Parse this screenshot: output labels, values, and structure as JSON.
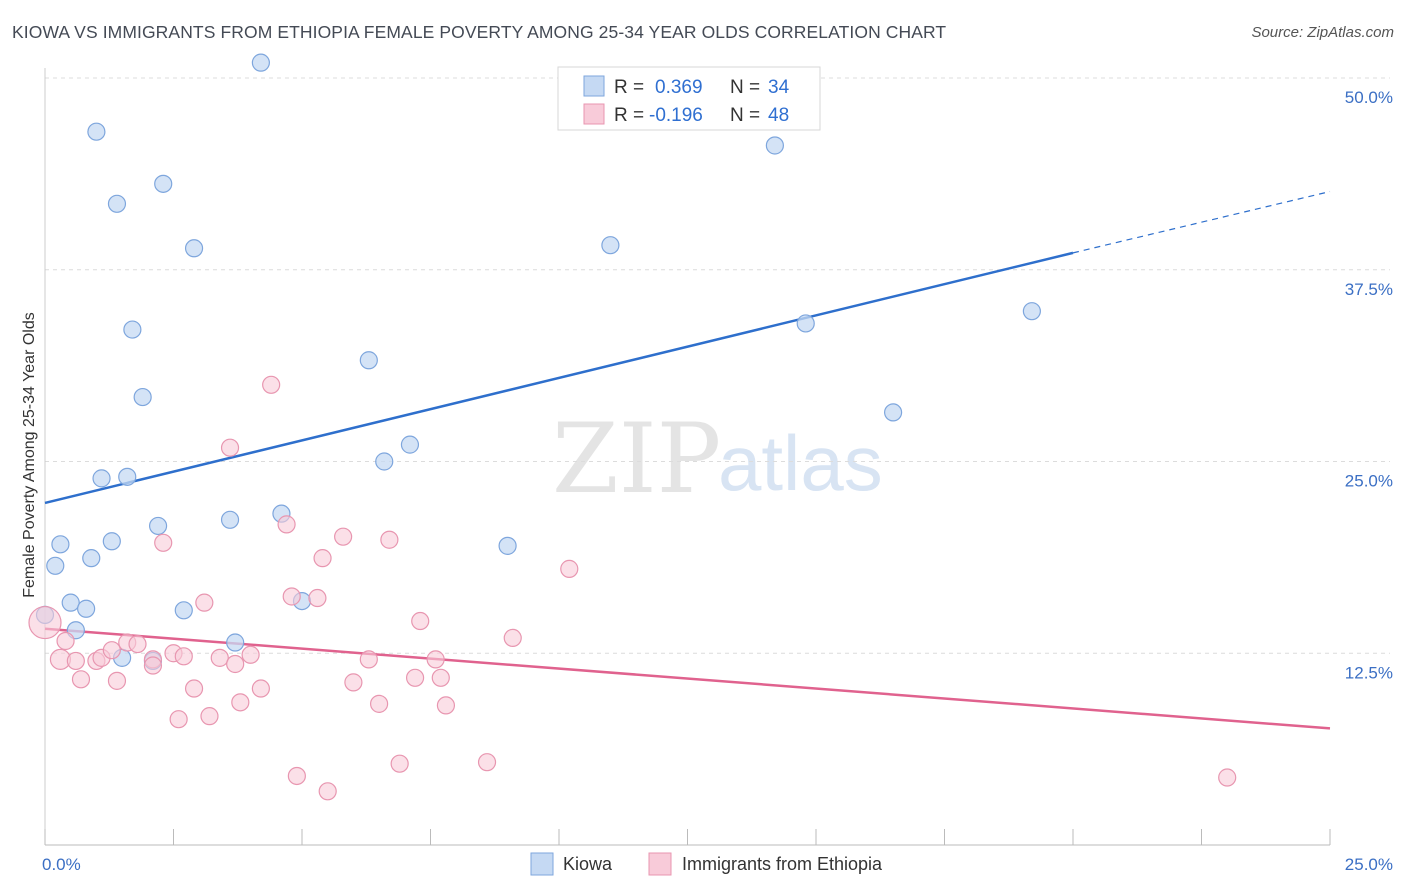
{
  "header": {
    "title": "KIOWA VS IMMIGRANTS FROM ETHIOPIA FEMALE POVERTY AMONG 25-34 YEAR OLDS CORRELATION CHART",
    "source": "Source: ZipAtlas.com"
  },
  "watermark": {
    "zip": "ZIP",
    "atlas": "atlas"
  },
  "chart_data": {
    "type": "scatter",
    "ylabel": "Female Poverty Among 25-34 Year Olds",
    "xlim": [
      0,
      25
    ],
    "ylim": [
      0,
      50
    ],
    "x_tick_labels": [
      {
        "value": 0,
        "label": "0.0%"
      },
      {
        "value": 25,
        "label": "25.0%"
      }
    ],
    "y_tick_labels": [
      {
        "value": 12.5,
        "label": "12.5%"
      },
      {
        "value": 25,
        "label": "25.0%"
      },
      {
        "value": 37.5,
        "label": "37.5%"
      },
      {
        "value": 50,
        "label": "50.0%"
      }
    ],
    "grid": true,
    "legend": {
      "position": "top-center",
      "entries": [
        {
          "r_label": "R =",
          "r_value": "0.369",
          "n_label": "N =",
          "n_value": "34"
        },
        {
          "r_label": "R =",
          "r_value": "-0.196",
          "n_label": "N =",
          "n_value": "48"
        }
      ]
    },
    "colors": {
      "kiowa_fill": "#c5d9f3",
      "kiowa_stroke": "#7ea6dd",
      "kiowa_line": "#2e6fcc",
      "ethiopia_fill": "#f8cbd9",
      "ethiopia_stroke": "#e896b0",
      "ethiopia_line": "#e0628e"
    },
    "series": [
      {
        "name": "Kiowa",
        "points": [
          [
            4.2,
            51.0
          ],
          [
            1.0,
            46.5
          ],
          [
            14.2,
            45.6
          ],
          [
            2.3,
            43.1
          ],
          [
            1.4,
            41.8
          ],
          [
            2.9,
            38.9
          ],
          [
            11.0,
            39.1
          ],
          [
            19.2,
            34.8
          ],
          [
            1.7,
            33.6
          ],
          [
            14.8,
            34.0
          ],
          [
            6.3,
            31.6
          ],
          [
            1.9,
            29.2
          ],
          [
            16.5,
            28.2
          ],
          [
            7.1,
            26.1
          ],
          [
            6.6,
            25.0
          ],
          [
            1.1,
            23.9
          ],
          [
            1.6,
            24.0
          ],
          [
            2.2,
            20.8
          ],
          [
            3.6,
            21.2
          ],
          [
            4.6,
            21.6
          ],
          [
            0.3,
            19.6
          ],
          [
            1.3,
            19.8
          ],
          [
            9.0,
            19.5
          ],
          [
            0.2,
            18.2
          ],
          [
            0.9,
            18.7
          ],
          [
            0.5,
            15.8
          ],
          [
            0.8,
            15.4
          ],
          [
            2.7,
            15.3
          ],
          [
            5.0,
            15.9
          ],
          [
            0.0,
            15.0
          ],
          [
            0.6,
            14.0
          ],
          [
            3.7,
            13.2
          ],
          [
            2.1,
            12.0
          ],
          [
            1.5,
            12.2
          ]
        ],
        "trend": {
          "x": [
            0,
            20
          ],
          "y": [
            22.3,
            38.6
          ],
          "dashed_extension": {
            "x": [
              20,
              25
            ],
            "y": [
              38.6,
              42.6
            ]
          }
        }
      },
      {
        "name": "Immigrants from Ethiopia",
        "points": [
          [
            0.0,
            14.5
          ],
          [
            0.3,
            12.1
          ],
          [
            0.6,
            12.0
          ],
          [
            0.4,
            13.3
          ],
          [
            0.7,
            10.8
          ],
          [
            1.0,
            12.0
          ],
          [
            1.1,
            12.2
          ],
          [
            1.3,
            12.7
          ],
          [
            1.4,
            10.7
          ],
          [
            1.6,
            13.2
          ],
          [
            1.8,
            13.1
          ],
          [
            2.1,
            12.1
          ],
          [
            2.1,
            11.7
          ],
          [
            2.3,
            19.7
          ],
          [
            2.5,
            12.5
          ],
          [
            2.6,
            8.2
          ],
          [
            2.7,
            12.3
          ],
          [
            2.9,
            10.2
          ],
          [
            3.1,
            15.8
          ],
          [
            3.2,
            8.4
          ],
          [
            3.4,
            12.2
          ],
          [
            3.6,
            25.9
          ],
          [
            3.7,
            11.8
          ],
          [
            3.8,
            9.3
          ],
          [
            4.0,
            12.4
          ],
          [
            4.2,
            10.2
          ],
          [
            4.4,
            30.0
          ],
          [
            4.7,
            20.9
          ],
          [
            4.8,
            16.2
          ],
          [
            4.9,
            4.5
          ],
          [
            5.3,
            16.1
          ],
          [
            5.4,
            18.7
          ],
          [
            5.5,
            3.5
          ],
          [
            5.8,
            20.1
          ],
          [
            6.0,
            10.6
          ],
          [
            6.3,
            12.1
          ],
          [
            6.5,
            9.2
          ],
          [
            6.7,
            19.9
          ],
          [
            6.9,
            5.3
          ],
          [
            7.2,
            10.9
          ],
          [
            7.3,
            14.6
          ],
          [
            7.6,
            12.1
          ],
          [
            7.7,
            10.9
          ],
          [
            7.8,
            9.1
          ],
          [
            8.6,
            5.4
          ],
          [
            9.1,
            13.5
          ],
          [
            10.2,
            18.0
          ],
          [
            23.0,
            4.4
          ]
        ],
        "trend": {
          "x": [
            0,
            25
          ],
          "y": [
            14.1,
            7.6
          ]
        }
      }
    ],
    "bottom_legend": [
      "Kiowa",
      "Immigrants from Ethiopia"
    ]
  }
}
